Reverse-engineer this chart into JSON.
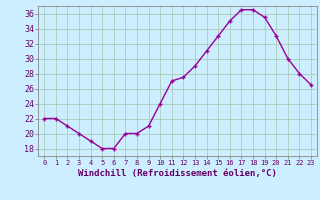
{
  "x": [
    0,
    1,
    2,
    3,
    4,
    5,
    6,
    7,
    8,
    9,
    10,
    11,
    12,
    13,
    14,
    15,
    16,
    17,
    18,
    19,
    20,
    21,
    22,
    23
  ],
  "y": [
    22,
    22,
    21,
    20,
    19,
    18,
    18,
    20,
    20,
    21,
    24,
    27,
    27.5,
    29,
    31,
    33,
    35,
    36.5,
    36.5,
    35.5,
    33,
    30,
    28,
    26.5
  ],
  "line_color": "#990099",
  "marker": "+",
  "bg_color": "#cceeff",
  "grid_color": "#aaccbb",
  "xlabel": "Windchill (Refroidissement éolien,°C)",
  "xlabel_color": "#660066",
  "tick_color": "#660066",
  "ylim": [
    17,
    37
  ],
  "yticks": [
    18,
    20,
    22,
    24,
    26,
    28,
    30,
    32,
    34,
    36
  ],
  "xticks": [
    0,
    1,
    2,
    3,
    4,
    5,
    6,
    7,
    8,
    9,
    10,
    11,
    12,
    13,
    14,
    15,
    16,
    17,
    18,
    19,
    20,
    21,
    22,
    23
  ],
  "xtick_labels": [
    "0",
    "1",
    "2",
    "3",
    "4",
    "5",
    "6",
    "7",
    "8",
    "9",
    "10",
    "11",
    "12",
    "13",
    "14",
    "15",
    "16",
    "17",
    "18",
    "19",
    "20",
    "21",
    "22",
    "23"
  ],
  "font_family": "monospace",
  "linewidth": 1.0,
  "markersize": 3,
  "markeredgewidth": 1.0
}
